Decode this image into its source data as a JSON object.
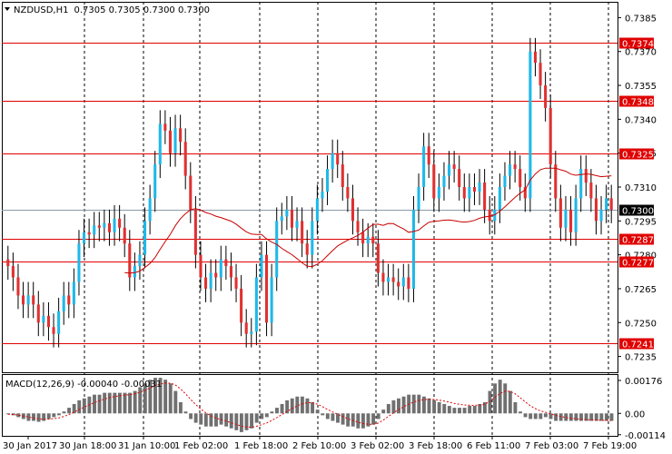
{
  "header": {
    "symbol_tf": "NZDUSD,H1",
    "ohlc": "0.7305 0.7305 0.7300 0.7300"
  },
  "macd_label": "MACD(12,26,9) -0.00040 -0.00031",
  "colors": {
    "bull": "#1fb8e8",
    "bear": "#e03030",
    "level_line": "#e00000",
    "ma_line": "#c80000",
    "current_line": "#8a9aa8",
    "macd_hist": "#707070",
    "macd_signal": "#e00000",
    "grid": "#000000"
  },
  "chart_data": [
    {
      "type": "candlestick",
      "title": "NZDUSD,H1",
      "ylim": [
        0.7228,
        0.7392
      ],
      "y_ticks": [
        "0.7385",
        "0.7370",
        "0.7355",
        "0.7340",
        "0.7325",
        "0.7310",
        "0.7295",
        "0.7280",
        "0.7265",
        "0.7250",
        "0.7235"
      ],
      "x_ticks": [
        "30 Jan 2017",
        "30 Jan 18:00",
        "31 Jan 10:00",
        "1 Feb 02:00",
        "1 Feb 18:00",
        "2 Feb 10:00",
        "3 Feb 02:00",
        "3 Feb 18:00",
        "6 Feb 11:00",
        "7 Feb 03:00",
        "7 Feb 19:00"
      ],
      "levels": [
        "0.7374",
        "0.7348",
        "0.7325",
        "0.7287",
        "0.7277",
        "0.7241"
      ],
      "current_price": "0.7300",
      "closes": [
        0.7275,
        0.727,
        0.7262,
        0.7258,
        0.7262,
        0.7258,
        0.725,
        0.7253,
        0.7248,
        0.7245,
        0.7255,
        0.7262,
        0.7258,
        0.7268,
        0.7285,
        0.729,
        0.7289,
        0.7293,
        0.7292,
        0.7294,
        0.729,
        0.7296,
        0.7292,
        0.7285,
        0.727,
        0.7275,
        0.728,
        0.7295,
        0.7305,
        0.732,
        0.7338,
        0.7335,
        0.7325,
        0.7336,
        0.733,
        0.7315,
        0.73,
        0.728,
        0.727,
        0.7265,
        0.7272,
        0.727,
        0.7278,
        0.7275,
        0.727,
        0.7265,
        0.725,
        0.7245,
        0.7246,
        0.727,
        0.728,
        0.725,
        0.727,
        0.7295,
        0.7297,
        0.73,
        0.7292,
        0.7295,
        0.7285,
        0.728,
        0.7295,
        0.7305,
        0.7308,
        0.7318,
        0.7325,
        0.732,
        0.731,
        0.7305,
        0.7295,
        0.729,
        0.7285,
        0.7288,
        0.7285,
        0.7272,
        0.7268,
        0.727,
        0.7268,
        0.7266,
        0.727,
        0.7265,
        0.73,
        0.731,
        0.7328,
        0.732,
        0.7305,
        0.731,
        0.7315,
        0.732,
        0.7318,
        0.731,
        0.7305,
        0.731,
        0.7308,
        0.7312,
        0.73,
        0.7295,
        0.73,
        0.731,
        0.7315,
        0.732,
        0.7318,
        0.731,
        0.7305,
        0.737,
        0.7365,
        0.7355,
        0.7345,
        0.732,
        0.7305,
        0.7292,
        0.73,
        0.729,
        0.7305,
        0.7318,
        0.7312,
        0.7305,
        0.7295,
        0.73,
        0.7305,
        0.73
      ],
      "ma_series_name": "",
      "macd": {
        "ylim": [
          -0.0012,
          0.0021
        ],
        "y_ticks": [
          "0.00176",
          "0.00",
          "-0.00114"
        ],
        "hist": [
          -5e-05,
          -0.0001,
          -0.0002,
          -0.0003,
          -0.0004,
          -0.0004,
          -0.00045,
          -0.0004,
          -0.0003,
          -0.0002,
          -0.0001,
          0.0001,
          0.0003,
          0.0005,
          0.0007,
          0.0008,
          0.0009,
          0.001,
          0.001,
          0.0011,
          0.0011,
          0.0011,
          0.0011,
          0.0011,
          0.0011,
          0.0012,
          0.0014,
          0.0016,
          0.0018,
          0.0019,
          0.0019,
          0.0018,
          0.0016,
          0.0012,
          0.0006,
          0.0001,
          -0.0003,
          -0.0005,
          -0.0006,
          -0.0007,
          -0.0007,
          -0.0007,
          -0.0006,
          -0.0007,
          -0.0008,
          -0.0009,
          -0.001,
          -0.0009,
          -0.0008,
          -0.0005,
          -0.0003,
          -0.0002,
          0.0001,
          0.0003,
          0.0005,
          0.0007,
          0.0008,
          0.0009,
          0.0009,
          0.0008,
          0.0006,
          0.0002,
          -0.0001,
          -0.0003,
          -0.0004,
          -0.0005,
          -0.0006,
          -0.0007,
          -0.0007,
          -0.0008,
          -0.0008,
          -0.0007,
          -0.0006,
          -0.0003,
          0.0002,
          0.0005,
          0.0007,
          0.0008,
          0.0009,
          0.001,
          0.001,
          0.001,
          0.0009,
          0.0008,
          0.0007,
          0.0006,
          0.0005,
          0.0004,
          0.0003,
          0.0003,
          0.0003,
          0.0004,
          0.0004,
          0.0005,
          0.0006,
          0.0012,
          0.0016,
          0.0018,
          0.0016,
          0.0012,
          0.0006,
          0.0001,
          -0.0002,
          -0.0003,
          -0.0003,
          -0.0003,
          -0.0002,
          -0.0003,
          -0.0004,
          -0.0004,
          -0.0004,
          -0.0004,
          -0.0004,
          -0.0004,
          -0.0004,
          -0.0004,
          -0.0004,
          -0.0004,
          -0.0004,
          -0.0004
        ]
      }
    }
  ]
}
